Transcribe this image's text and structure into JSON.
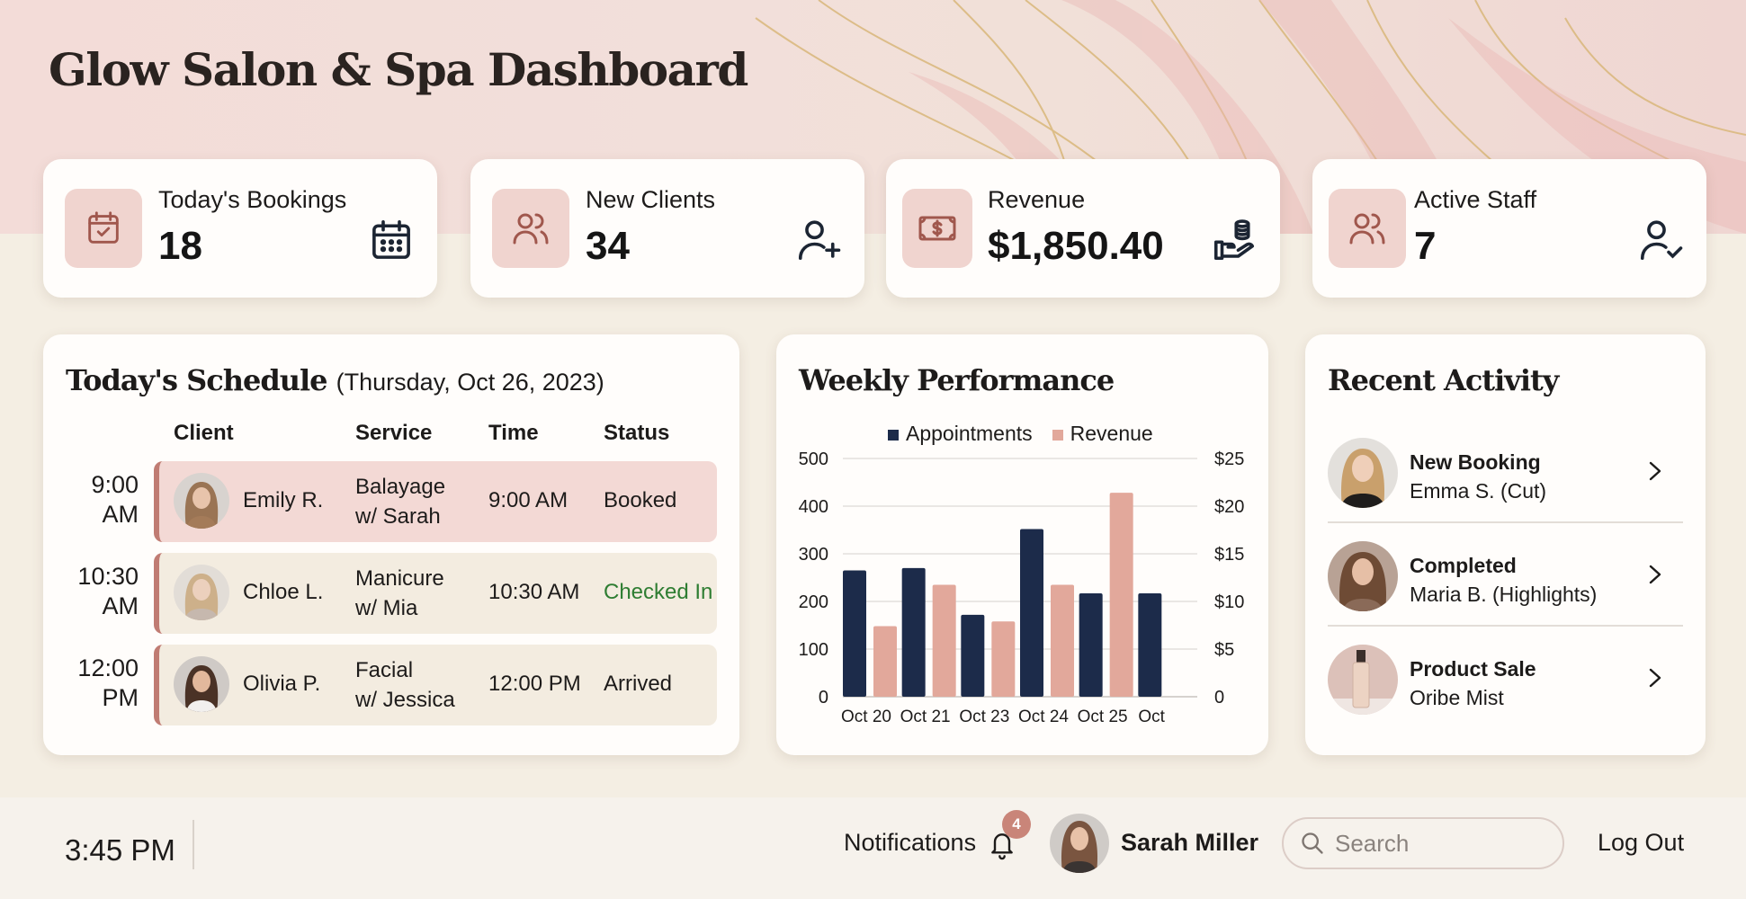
{
  "header": {
    "title": "Glow Salon & Spa Dashboard"
  },
  "stats": [
    {
      "label": "Today's Bookings",
      "value": "18",
      "badge_icon": "calendar-check-icon",
      "side_icon": "calendar-icon"
    },
    {
      "label": "New Clients",
      "value": "34",
      "badge_icon": "users-icon",
      "side_icon": "user-plus-icon"
    },
    {
      "label": "Revenue",
      "value": "$1,850.40",
      "badge_icon": "banknote-icon",
      "side_icon": "hand-coins-icon"
    },
    {
      "label": "Active Staff",
      "value": "7",
      "badge_icon": "users-icon",
      "side_icon": "user-check-icon"
    }
  ],
  "schedule": {
    "title": "Today's Schedule",
    "date": "(Thursday, Oct 26, 2023)",
    "columns": [
      "Client",
      "Service",
      "Time",
      "Status"
    ],
    "rows": [
      {
        "slot_time": "9:00",
        "slot_period": "AM",
        "client": "Emily R.",
        "service_line1": "Balayage",
        "service_line2": "w/ Sarah",
        "time": "9:00 AM",
        "status": "Booked",
        "row_color": "#f3d9d5",
        "status_color": "#1d1b1a"
      },
      {
        "slot_time": "10:30",
        "slot_period": "AM",
        "client": "Chloe L.",
        "service_line1": "Manicure",
        "service_line2": "w/ Mia",
        "time": "10:30 AM",
        "status": "Checked In",
        "row_color": "#f3ece0",
        "status_color": "#2e7d32"
      },
      {
        "slot_time": "12:00",
        "slot_period": "PM",
        "client": "Olivia P.",
        "service_line1": "Facial",
        "service_line2": "w/ Jessica",
        "time": "12:00 PM",
        "status": "Arrived",
        "row_color": "#f3ece0",
        "status_color": "#1d1b1a"
      }
    ]
  },
  "chart": {
    "title": "Weekly Performance"
  },
  "chart_data": {
    "type": "bar",
    "title": "Weekly Performance",
    "categories": [
      "Oct 20",
      "Oct 21",
      "Oct 23",
      "Oct 24",
      "Oct 25",
      "Oct"
    ],
    "series": [
      {
        "name": "Appointments",
        "axis": "left",
        "color": "#1c2b4a",
        "values": [
          265,
          270,
          172,
          352,
          217,
          217
        ]
      },
      {
        "name": "Revenue",
        "axis": "right",
        "color": "#e2a89b",
        "values": [
          7.4,
          11.75,
          7.9,
          11.75,
          21.4,
          null
        ]
      }
    ],
    "y_left": {
      "ticks": [
        "500",
        "400",
        "300",
        "200",
        "100",
        "0"
      ],
      "range": [
        0,
        500
      ]
    },
    "y_right": {
      "ticks": [
        "$25",
        "$20",
        "$15",
        "$10",
        "$5",
        "0"
      ],
      "range": [
        0,
        25
      ]
    },
    "grid": true,
    "legend_position": "top",
    "xlabel": "",
    "ylabel": ""
  },
  "activity": {
    "title": "Recent Activity",
    "items": [
      {
        "heading": "New Booking",
        "detail": "Emma S. (Cut)"
      },
      {
        "heading": "Completed",
        "detail": "Maria B. (Highlights)"
      },
      {
        "heading": "Product Sale",
        "detail": "Oribe Mist"
      }
    ]
  },
  "footer": {
    "clock": "3:45 PM",
    "notifications_label": "Notifications",
    "notification_count": "4",
    "user_name": "Sarah Miller",
    "search_placeholder": "Search",
    "search_value": "",
    "logout_label": "Log Out"
  },
  "colors": {
    "accent_rose": "#c07c73",
    "badge_bg": "#f0d4cf",
    "navy": "#1c2b4a",
    "peach": "#e2a89b",
    "success_green": "#2e7d32"
  }
}
